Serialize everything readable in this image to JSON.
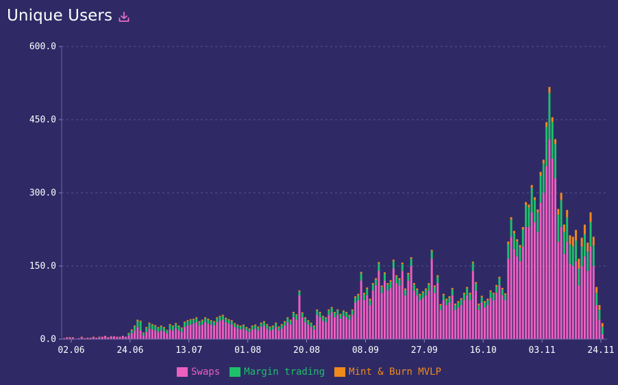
{
  "header": {
    "title": "Unique Users"
  },
  "colors": {
    "background": "#2f2a66",
    "swaps": "#ec5fbf",
    "margin": "#1fbf6b",
    "mint": "#f08a1c",
    "grid": "#5b5790"
  },
  "chart_data": {
    "type": "bar",
    "stacked": true,
    "title": "Unique Users",
    "ylim": [
      0,
      600
    ],
    "yticks": [
      "0.0",
      "150.0",
      "300.0",
      "450.0",
      "600.0"
    ],
    "xticks": [
      "02.06",
      "24.06",
      "13.07",
      "01.08",
      "20.08",
      "08.09",
      "27.09",
      "16.10",
      "03.11",
      "24.11"
    ],
    "legend_position": "bottom",
    "grid": "horizontal dashed",
    "series": [
      {
        "name": "Swaps",
        "values": [
          2,
          3,
          4,
          3,
          1,
          2,
          4,
          2,
          2,
          3,
          4,
          3,
          4,
          5,
          6,
          4,
          5,
          6,
          4,
          5,
          6,
          5,
          8,
          12,
          18,
          25,
          18,
          8,
          15,
          22,
          20,
          18,
          15,
          18,
          16,
          12,
          20,
          18,
          22,
          18,
          15,
          25,
          28,
          30,
          32,
          35,
          28,
          30,
          35,
          32,
          30,
          28,
          35,
          38,
          40,
          35,
          32,
          30,
          25,
          22,
          20,
          22,
          18,
          15,
          20,
          22,
          18,
          25,
          28,
          22,
          18,
          20,
          25,
          18,
          22,
          28,
          35,
          30,
          45,
          40,
          90,
          45,
          35,
          30,
          25,
          20,
          50,
          45,
          38,
          35,
          50,
          55,
          45,
          50,
          42,
          48,
          45,
          40,
          50,
          75,
          80,
          120,
          80,
          90,
          70,
          100,
          110,
          140,
          95,
          120,
          100,
          105,
          145,
          115,
          110,
          140,
          90,
          120,
          150,
          100,
          90,
          80,
          85,
          90,
          100,
          165,
          95,
          115,
          60,
          80,
          70,
          75,
          90,
          60,
          65,
          70,
          80,
          90,
          80,
          140,
          100,
          60,
          75,
          65,
          70,
          85,
          80,
          95,
          110,
          90,
          80,
          165,
          210,
          185,
          170,
          160,
          190,
          230,
          230,
          260,
          240,
          220,
          280,
          300,
          355,
          410,
          370,
          330,
          200,
          230,
          175,
          200,
          155,
          150,
          160,
          110,
          150,
          170,
          140,
          190,
          150,
          70,
          40,
          10
        ],
        "note": "daily values read approximately from bar heights"
      },
      {
        "name": "Margin trading",
        "values": [
          0,
          0,
          0,
          0,
          0,
          0,
          0,
          0,
          0,
          0,
          0,
          0,
          0,
          0,
          0,
          0,
          0,
          0,
          0,
          0,
          0,
          0,
          4,
          6,
          8,
          12,
          18,
          5,
          8,
          10,
          9,
          9,
          8,
          8,
          7,
          6,
          9,
          8,
          9,
          8,
          7,
          9,
          9,
          9,
          8,
          8,
          7,
          8,
          8,
          8,
          7,
          7,
          8,
          8,
          8,
          7,
          7,
          7,
          6,
          6,
          6,
          6,
          5,
          5,
          6,
          6,
          6,
          7,
          7,
          7,
          6,
          6,
          7,
          6,
          7,
          7,
          8,
          8,
          9,
          9,
          8,
          8,
          8,
          7,
          7,
          6,
          9,
          9,
          8,
          8,
          9,
          9,
          9,
          9,
          8,
          9,
          9,
          8,
          9,
          10,
          10,
          15,
          12,
          13,
          10,
          12,
          12,
          15,
          12,
          14,
          12,
          13,
          15,
          13,
          12,
          14,
          11,
          13,
          15,
          12,
          11,
          10,
          10,
          11,
          12,
          15,
          12,
          13,
          9,
          10,
          10,
          10,
          12,
          10,
          10,
          11,
          12,
          14,
          12,
          16,
          14,
          10,
          11,
          10,
          10,
          12,
          12,
          13,
          15,
          12,
          11,
          30,
          35,
          32,
          30,
          28,
          35,
          45,
          40,
          50,
          45,
          40,
          55,
          60,
          80,
          95,
          75,
          70,
          55,
          55,
          45,
          50,
          40,
          40,
          42,
          35,
          40,
          45,
          40,
          50,
          42,
          25,
          20,
          15
        ],
        "note": "approximate"
      },
      {
        "name": "Mint & Burn MVLP",
        "values": [
          0,
          1,
          0,
          1,
          0,
          0,
          1,
          0,
          1,
          0,
          1,
          0,
          1,
          0,
          1,
          0,
          1,
          0,
          1,
          0,
          1,
          0,
          1,
          2,
          2,
          3,
          2,
          1,
          2,
          2,
          2,
          2,
          2,
          2,
          2,
          1,
          2,
          2,
          2,
          2,
          2,
          2,
          2,
          2,
          2,
          2,
          2,
          2,
          2,
          2,
          2,
          2,
          2,
          2,
          2,
          2,
          2,
          2,
          2,
          2,
          2,
          2,
          2,
          2,
          2,
          2,
          2,
          2,
          2,
          2,
          2,
          2,
          2,
          2,
          2,
          2,
          2,
          2,
          2,
          2,
          2,
          2,
          2,
          2,
          2,
          2,
          2,
          2,
          2,
          2,
          2,
          2,
          2,
          2,
          2,
          2,
          2,
          2,
          2,
          3,
          3,
          3,
          3,
          3,
          3,
          3,
          3,
          3,
          3,
          3,
          3,
          3,
          3,
          3,
          3,
          3,
          3,
          3,
          3,
          3,
          3,
          3,
          3,
          3,
          3,
          3,
          3,
          3,
          3,
          3,
          3,
          3,
          3,
          3,
          3,
          3,
          3,
          3,
          3,
          3,
          3,
          3,
          3,
          3,
          3,
          3,
          3,
          3,
          3,
          3,
          3,
          5,
          5,
          5,
          5,
          5,
          5,
          6,
          6,
          6,
          6,
          6,
          8,
          8,
          10,
          12,
          10,
          10,
          12,
          15,
          15,
          15,
          18,
          20,
          22,
          20,
          18,
          20,
          18,
          20,
          18,
          12,
          10,
          8
        ],
        "note": "approximate"
      }
    ]
  }
}
